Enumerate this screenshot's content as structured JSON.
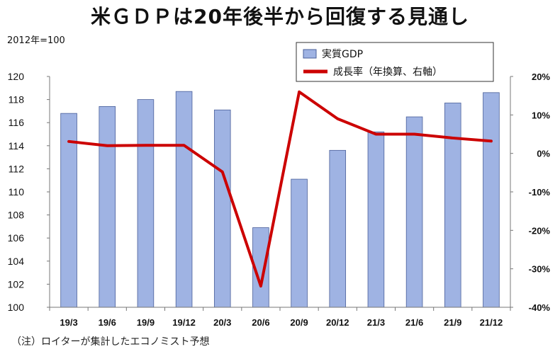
{
  "title": "米ＧＤＰは20年後半から回復する見通し",
  "base_label": "2012年=100",
  "note": "（注）ロイターが集計したエコノミスト予想",
  "colors": {
    "bar": "#9fb3e3",
    "bar_stroke": "#4a5f99",
    "line": "#cc0000"
  },
  "chart_data": {
    "type": "bar",
    "categories": [
      "19/3",
      "19/6",
      "19/9",
      "19/12",
      "20/3",
      "20/6",
      "20/9",
      "20/12",
      "21/3",
      "21/6",
      "21/9",
      "21/12"
    ],
    "series": [
      {
        "name": "実質GDP",
        "type": "bar",
        "axis": "left",
        "values": [
          116.8,
          117.4,
          118.0,
          118.7,
          117.1,
          106.9,
          111.1,
          113.6,
          115.2,
          116.5,
          117.7,
          118.6
        ]
      },
      {
        "name": "成長率（年換算、右軸）",
        "type": "line",
        "axis": "right",
        "values": [
          3.1,
          2.0,
          2.1,
          2.1,
          -4.8,
          -34.5,
          16.0,
          9.0,
          5.0,
          5.0,
          4.0,
          3.2
        ]
      }
    ],
    "y_left": {
      "lim": [
        100,
        120
      ],
      "ticks": [
        "100",
        "102",
        "104",
        "106",
        "108",
        "110",
        "112",
        "114",
        "116",
        "118",
        "120"
      ]
    },
    "y_right": {
      "lim": [
        -40,
        20
      ],
      "ticks": [
        "-40%",
        "-30%",
        "-20%",
        "-10%",
        "0%",
        "10%",
        "20%"
      ]
    },
    "legend_placement": "top-right",
    "grid": false
  }
}
